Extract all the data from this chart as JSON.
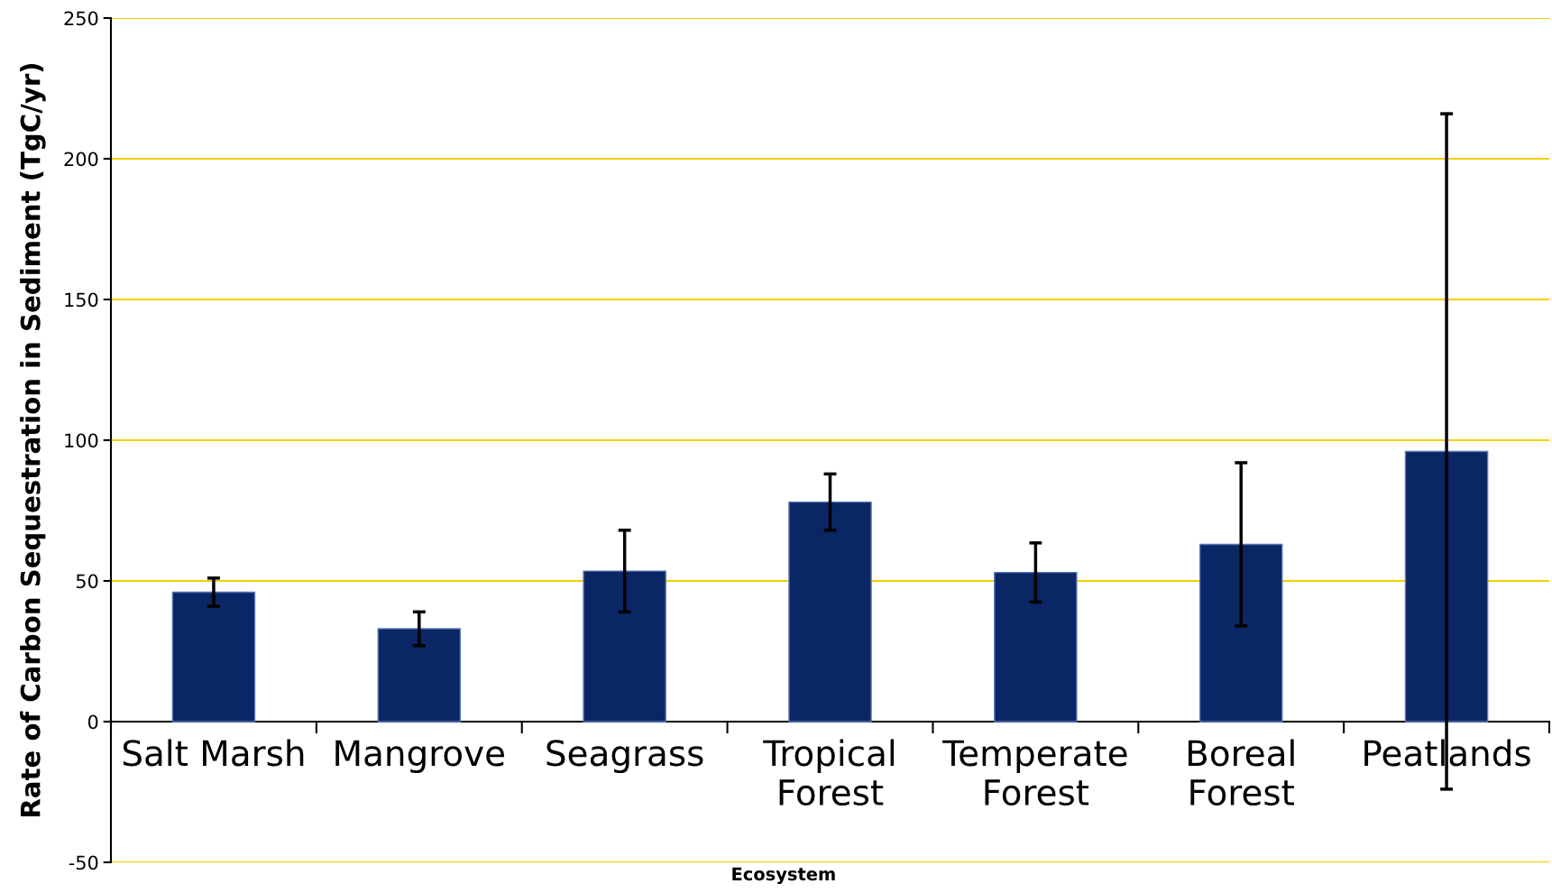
{
  "chart_data": {
    "type": "bar",
    "xlabel": "Ecosystem",
    "ylabel": "Rate of Carbon Sequestration in Sediment (TgC/yr)",
    "categories": [
      "Salt Marsh",
      "Mangrove",
      "Seagrass",
      "Tropical\nForest",
      "Temperate\nForest",
      "Boreal\nForest",
      "Peatlands"
    ],
    "values": [
      46,
      33,
      53.5,
      78,
      53,
      63,
      96
    ],
    "errors": [
      5,
      6,
      14.5,
      10,
      10.5,
      29,
      120
    ],
    "color": "#0a2664",
    "ylim": [
      -50,
      250
    ],
    "yticks": [
      -50,
      0,
      50,
      100,
      150,
      200,
      250
    ],
    "grid": "y"
  }
}
